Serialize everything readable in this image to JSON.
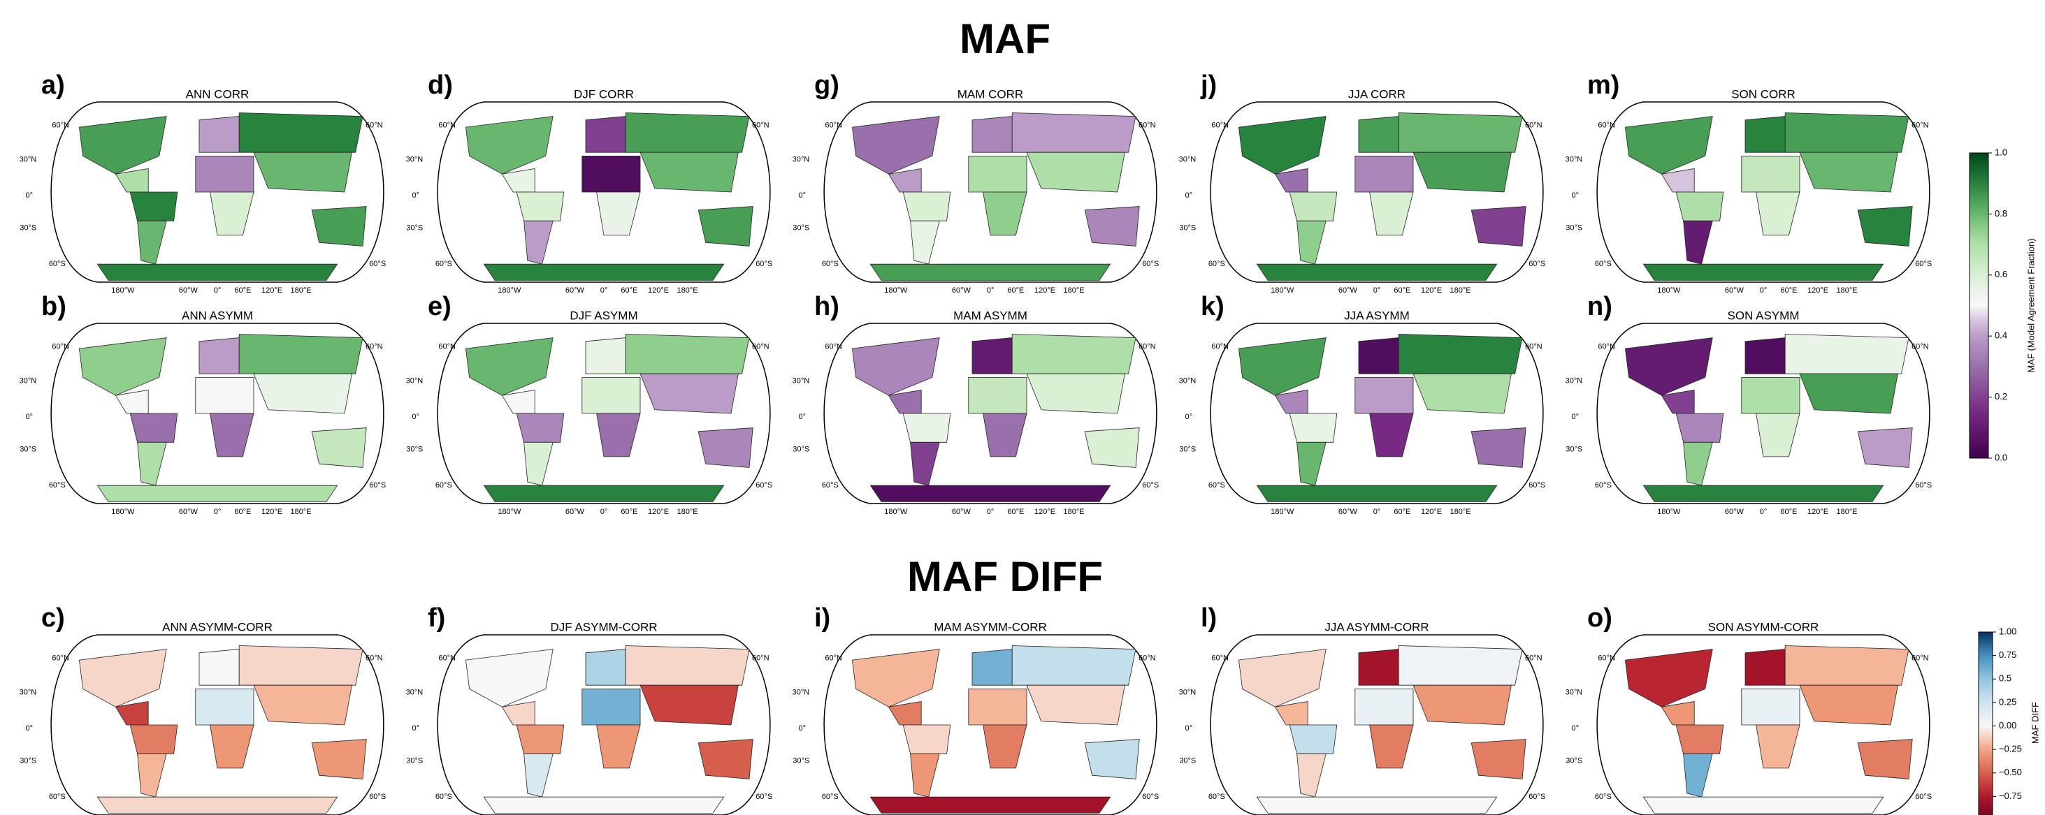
{
  "lat_labels": [
    "60°N",
    "30°N",
    "0°",
    "30°S",
    "60°S"
  ],
  "lon_labels": [
    "180°W",
    "60°W",
    "0°",
    "60°E",
    "120°E",
    "180°E"
  ],
  "sections": [
    {
      "title": "MAF",
      "colorbar": {
        "label": "MAF (Model Agreement Fraction)",
        "lim": [
          0,
          1
        ],
        "ticks": [
          {
            "value": 0,
            "label": "0.0"
          },
          0.2,
          0.4,
          0.6,
          0.8,
          {
            "value": 1,
            "label": "1.0"
          }
        ]
      },
      "rows": [
        [
          {
            "label": "a)",
            "title": "ANN CORR",
            "values": [
              0.85,
              0.7,
              0.9,
              0.8,
              0.4,
              0.35,
              0.6,
              0.9,
              0.8,
              0.85,
              0.9
            ]
          },
          {
            "label": "d)",
            "title": "DJF CORR",
            "values": [
              0.8,
              0.55,
              0.6,
              0.4,
              0.2,
              0.05,
              0.55,
              0.85,
              0.8,
              0.85,
              0.9
            ]
          },
          {
            "label": "g)",
            "title": "MAM CORR",
            "values": [
              0.3,
              0.4,
              0.6,
              0.55,
              0.35,
              0.7,
              0.75,
              0.4,
              0.7,
              0.35,
              0.85
            ]
          },
          {
            "label": "j)",
            "title": "JJA CORR",
            "values": [
              0.9,
              0.3,
              0.65,
              0.75,
              0.85,
              0.35,
              0.6,
              0.8,
              0.85,
              0.2,
              0.9
            ]
          },
          {
            "label": "m)",
            "title": "SON CORR",
            "values": [
              0.85,
              0.45,
              0.7,
              0.1,
              0.9,
              0.65,
              0.6,
              0.85,
              0.8,
              0.9,
              0.9
            ]
          }
        ],
        [
          {
            "label": "b)",
            "title": "ANN ASYMM",
            "values": [
              0.75,
              0.5,
              0.3,
              0.7,
              0.4,
              0.5,
              0.3,
              0.8,
              0.55,
              0.65,
              0.7
            ]
          },
          {
            "label": "e)",
            "title": "DJF ASYMM",
            "values": [
              0.8,
              0.5,
              0.35,
              0.6,
              0.55,
              0.6,
              0.3,
              0.75,
              0.4,
              0.35,
              0.9
            ]
          },
          {
            "label": "h)",
            "title": "MAM ASYMM",
            "values": [
              0.35,
              0.3,
              0.55,
              0.2,
              0.1,
              0.65,
              0.3,
              0.7,
              0.6,
              0.6,
              0.05
            ]
          },
          {
            "label": "k)",
            "title": "JJA ASYMM",
            "values": [
              0.85,
              0.35,
              0.55,
              0.8,
              0.05,
              0.4,
              0.15,
              0.9,
              0.7,
              0.3,
              0.9
            ]
          },
          {
            "label": "n)",
            "title": "SON ASYMM",
            "values": [
              0.1,
              0.2,
              0.35,
              0.75,
              0.05,
              0.7,
              0.6,
              0.55,
              0.85,
              0.4,
              0.9
            ]
          }
        ]
      ]
    },
    {
      "title": "MAF DIFF",
      "colorbar": {
        "label": "MAF DIFF",
        "lim": [
          -1,
          1
        ],
        "ticks": [
          {
            "value": 1,
            "label": "1.00"
          },
          0.75,
          0.5,
          0.25,
          {
            "value": 0,
            "label": "0.00"
          },
          {
            "value": -0.25,
            "label": "−0.25"
          },
          {
            "value": -0.5,
            "label": "−0.50"
          },
          {
            "value": -0.75,
            "label": "−0.75"
          }
        ]
      },
      "rows": [
        [
          {
            "label": "c)",
            "title": "ANN ASYMM-CORR",
            "values": [
              -0.1,
              -0.6,
              -0.4,
              -0.2,
              0,
              0.2,
              -0.3,
              -0.1,
              -0.2,
              -0.3,
              -0.1
            ]
          },
          {
            "label": "f)",
            "title": "DJF ASYMM-CORR",
            "values": [
              0,
              -0.1,
              -0.3,
              0.2,
              0.4,
              0.6,
              -0.3,
              -0.1,
              -0.6,
              -0.5,
              0
            ]
          },
          {
            "label": "i)",
            "title": "MAM ASYMM-CORR",
            "values": [
              -0.2,
              -0.4,
              -0.1,
              -0.3,
              0.6,
              -0.2,
              -0.4,
              0.3,
              -0.1,
              0.3,
              -0.8
            ]
          },
          {
            "label": "l)",
            "title": "JJA ASYMM-CORR",
            "values": [
              -0.1,
              -0.2,
              0.3,
              -0.1,
              -0.8,
              0.1,
              -0.4,
              0.05,
              -0.3,
              -0.4,
              0
            ]
          },
          {
            "label": "o)",
            "title": "SON ASYMM-CORR",
            "values": [
              -0.7,
              -0.3,
              -0.4,
              0.6,
              -0.8,
              0.1,
              -0.2,
              -0.2,
              -0.3,
              -0.4,
              0
            ]
          }
        ]
      ]
    }
  ]
}
